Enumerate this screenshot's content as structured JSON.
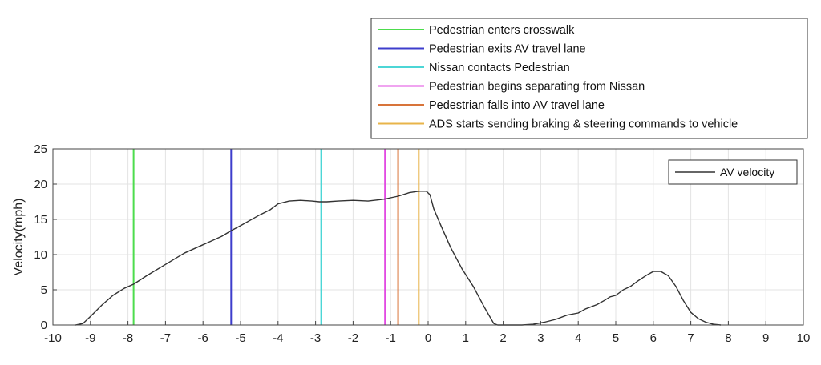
{
  "chart_data": {
    "type": "line",
    "title": "",
    "xlabel": "",
    "ylabel": "Velocity(mph)",
    "xlim": [
      -10,
      10
    ],
    "ylim": [
      0,
      25
    ],
    "x_ticks": [
      -10,
      -9,
      -8,
      -7,
      -6,
      -5,
      -4,
      -3,
      -2,
      -1,
      0,
      1,
      2,
      3,
      4,
      5,
      6,
      7,
      8,
      9,
      10
    ],
    "y_ticks": [
      0,
      5,
      10,
      15,
      20,
      25
    ],
    "grid": true,
    "series": [
      {
        "name": "AV velocity",
        "color": "#333333",
        "points": [
          [
            -9.4,
            0
          ],
          [
            -9.3,
            0.1
          ],
          [
            -9.2,
            0.2
          ],
          [
            -9.0,
            1.2
          ],
          [
            -8.7,
            2.8
          ],
          [
            -8.4,
            4.2
          ],
          [
            -8.1,
            5.2
          ],
          [
            -7.85,
            5.8
          ],
          [
            -7.5,
            7.0
          ],
          [
            -7.0,
            8.6
          ],
          [
            -6.5,
            10.2
          ],
          [
            -6.0,
            11.4
          ],
          [
            -5.5,
            12.6
          ],
          [
            -5.25,
            13.4
          ],
          [
            -5.0,
            14.1
          ],
          [
            -4.5,
            15.6
          ],
          [
            -4.2,
            16.4
          ],
          [
            -4.0,
            17.2
          ],
          [
            -3.7,
            17.6
          ],
          [
            -3.4,
            17.7
          ],
          [
            -3.1,
            17.6
          ],
          [
            -2.9,
            17.5
          ],
          [
            -2.7,
            17.5
          ],
          [
            -2.4,
            17.6
          ],
          [
            -2.0,
            17.7
          ],
          [
            -1.6,
            17.6
          ],
          [
            -1.3,
            17.8
          ],
          [
            -1.15,
            17.9
          ],
          [
            -0.8,
            18.3
          ],
          [
            -0.5,
            18.8
          ],
          [
            -0.25,
            19.0
          ],
          [
            -0.05,
            19.0
          ],
          [
            0.05,
            18.5
          ],
          [
            0.15,
            16.5
          ],
          [
            0.35,
            14.0
          ],
          [
            0.6,
            11.0
          ],
          [
            0.9,
            8.0
          ],
          [
            1.2,
            5.5
          ],
          [
            1.5,
            2.5
          ],
          [
            1.75,
            0.2
          ],
          [
            1.85,
            0
          ],
          [
            2.5,
            0
          ],
          [
            2.8,
            0.1
          ],
          [
            3.1,
            0.4
          ],
          [
            3.4,
            0.8
          ],
          [
            3.7,
            1.4
          ],
          [
            4.0,
            1.7
          ],
          [
            4.2,
            2.3
          ],
          [
            4.5,
            2.9
          ],
          [
            4.7,
            3.5
          ],
          [
            4.85,
            4.0
          ],
          [
            5.0,
            4.2
          ],
          [
            5.2,
            5.0
          ],
          [
            5.4,
            5.5
          ],
          [
            5.6,
            6.3
          ],
          [
            5.8,
            7.0
          ],
          [
            6.0,
            7.6
          ],
          [
            6.2,
            7.6
          ],
          [
            6.4,
            7.0
          ],
          [
            6.6,
            5.5
          ],
          [
            6.8,
            3.5
          ],
          [
            7.0,
            1.8
          ],
          [
            7.2,
            0.9
          ],
          [
            7.4,
            0.4
          ],
          [
            7.6,
            0.1
          ],
          [
            7.8,
            0
          ]
        ]
      }
    ],
    "events": [
      {
        "label": "Pedestrian enters crosswalk",
        "x": -7.85,
        "color": "#4ddc4d"
      },
      {
        "label": "Pedestrian exits AV travel lane",
        "x": -5.25,
        "color": "#3d3dcc"
      },
      {
        "label": "Nissan contacts Pedestrian",
        "x": -2.85,
        "color": "#4cd6d6"
      },
      {
        "label": "Pedestrian begins separating from Nissan",
        "x": -1.15,
        "color": "#e24ae2"
      },
      {
        "label": "Pedestrian falls into AV travel lane",
        "x": -0.8,
        "color": "#d8743a"
      },
      {
        "label": "ADS starts sending braking & steering commands to vehicle",
        "x": -0.25,
        "color": "#e8b44a"
      }
    ],
    "events_legend_position": "above-right",
    "series_legend_position": "top-right"
  }
}
